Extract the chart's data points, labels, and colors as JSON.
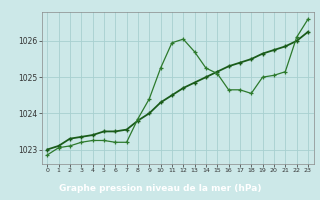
{
  "line1_x": [
    0,
    1,
    2,
    3,
    4,
    5,
    6,
    7,
    8,
    9,
    10,
    11,
    12,
    13,
    14,
    15,
    16,
    17,
    18,
    19,
    20,
    21,
    22,
    23
  ],
  "line1_y": [
    1022.85,
    1023.05,
    1023.1,
    1023.2,
    1023.25,
    1023.25,
    1023.2,
    1023.2,
    1023.85,
    1024.4,
    1025.25,
    1025.95,
    1026.05,
    1025.7,
    1025.25,
    1025.1,
    1024.65,
    1024.65,
    1024.55,
    1025.0,
    1025.05,
    1025.15,
    1026.1,
    1026.6
  ],
  "line2_x": [
    0,
    1,
    2,
    3,
    4,
    5,
    6,
    7,
    8,
    9,
    10,
    11,
    12,
    13,
    14,
    15,
    16,
    17,
    18,
    19,
    20,
    21,
    22,
    23
  ],
  "line2_y": [
    1023.0,
    1023.1,
    1023.3,
    1023.35,
    1023.4,
    1023.5,
    1023.5,
    1023.55,
    1023.8,
    1024.0,
    1024.3,
    1024.5,
    1024.7,
    1024.85,
    1025.0,
    1025.15,
    1025.3,
    1025.4,
    1025.5,
    1025.65,
    1025.75,
    1025.85,
    1026.0,
    1026.25
  ],
  "line_color": "#2d7a2d",
  "line_color2": "#1a5c1a",
  "bg_color": "#cce8e8",
  "grid_color": "#a8d0d0",
  "xlabel": "Graphe pression niveau de la mer (hPa)",
  "xlabel_bg": "#1a5c1a",
  "xlabel_color": "#ffffff",
  "ylim": [
    1022.6,
    1026.8
  ],
  "xlim": [
    -0.5,
    23.5
  ],
  "yticks": [
    1023,
    1024,
    1025,
    1026
  ],
  "xticks": [
    0,
    1,
    2,
    3,
    4,
    5,
    6,
    7,
    8,
    9,
    10,
    11,
    12,
    13,
    14,
    15,
    16,
    17,
    18,
    19,
    20,
    21,
    22,
    23
  ],
  "xtick_labels": [
    "0",
    "1",
    "2",
    "3",
    "4",
    "5",
    "6",
    "7",
    "8",
    "9",
    "10",
    "11",
    "12",
    "13",
    "14",
    "15",
    "16",
    "17",
    "18",
    "19",
    "20",
    "21",
    "22",
    "23"
  ]
}
